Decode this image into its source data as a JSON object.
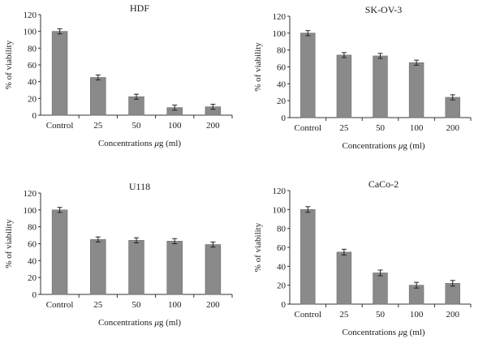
{
  "chart_data": [
    {
      "type": "bar",
      "title": "HDF",
      "categories": [
        "Control",
        "25",
        "50",
        "100",
        "200"
      ],
      "values": [
        100,
        45,
        22,
        9,
        10
      ],
      "errors": [
        3,
        3,
        3,
        3,
        3
      ],
      "ylim": [
        0,
        120
      ],
      "yticks": [
        0,
        20,
        40,
        60,
        80,
        100,
        120
      ],
      "xlabel_prefix": "Concentrations ",
      "xlabel_mu": "μ",
      "xlabel_suffix": "g (ml)",
      "ylabel": "% of viability",
      "bar_color": "#8a8a8a"
    },
    {
      "type": "bar",
      "title": "SK-OV-3",
      "categories": [
        "Control",
        "25",
        "50",
        "100",
        "200"
      ],
      "values": [
        100,
        74,
        73,
        65,
        24
      ],
      "errors": [
        3,
        3,
        3,
        3,
        3
      ],
      "ylim": [
        0,
        120
      ],
      "yticks": [
        0,
        20,
        40,
        60,
        80,
        100,
        120
      ],
      "xlabel_prefix": "Concentrations ",
      "xlabel_mu": "μ",
      "xlabel_suffix": "g (ml)",
      "ylabel": "% of viability",
      "bar_color": "#8a8a8a"
    },
    {
      "type": "bar",
      "title": "U118",
      "categories": [
        "Control",
        "25",
        "50",
        "100",
        "200"
      ],
      "values": [
        100,
        65,
        64,
        63,
        59
      ],
      "errors": [
        3,
        3,
        3,
        3,
        3
      ],
      "ylim": [
        0,
        120
      ],
      "yticks": [
        0,
        20,
        40,
        60,
        80,
        100,
        120
      ],
      "xlabel_prefix": "Concentrations ",
      "xlabel_mu": "μ",
      "xlabel_suffix": "g (ml)",
      "ylabel": "% of viability",
      "bar_color": "#8a8a8a"
    },
    {
      "type": "bar",
      "title": "CaCo-2",
      "categories": [
        "Control",
        "25",
        "50",
        "100",
        "200"
      ],
      "values": [
        100,
        55,
        33,
        20,
        22
      ],
      "errors": [
        3,
        3,
        3,
        3,
        3
      ],
      "ylim": [
        0,
        120
      ],
      "yticks": [
        0,
        20,
        40,
        60,
        80,
        100,
        120
      ],
      "xlabel_prefix": "Concentrations ",
      "xlabel_mu": "μ",
      "xlabel_suffix": "g (ml)",
      "ylabel": "% of viability",
      "bar_color": "#8a8a8a"
    }
  ]
}
